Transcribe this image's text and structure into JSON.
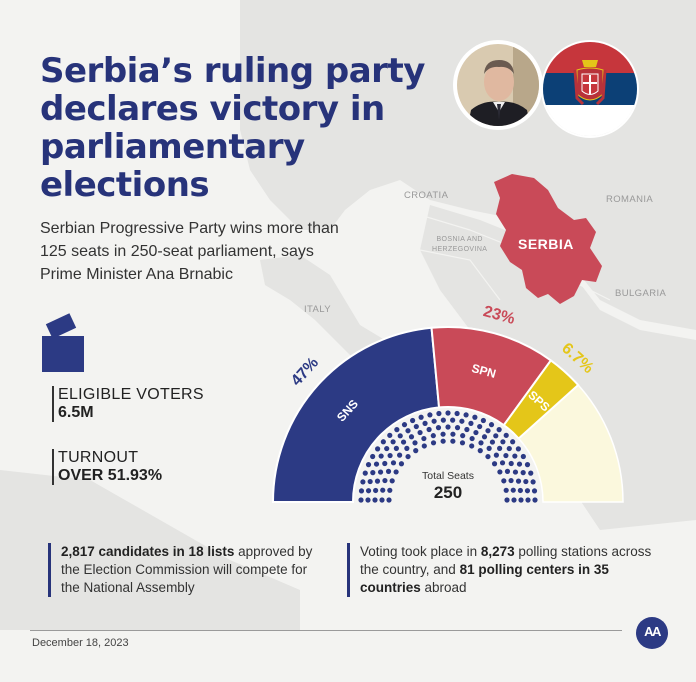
{
  "title": "Serbia’s ruling party declares victory in parliamentary elections",
  "subtitle": "Serbian Progressive Party wins more than 125 seats in 250-seat parliament, says Prime Minister Ana Brnabic",
  "map_labels": {
    "croatia": "CROATIA",
    "bosnia_line1": "BOSNIA AND",
    "bosnia_line2": "HERZEGOVINA",
    "romania": "ROMANIA",
    "bulgaria": "BULGARIA",
    "italy": "ITALY",
    "serbia": "SERBIA"
  },
  "stats": {
    "eligible_label": "ELIGIBLE VOTERS",
    "eligible_value": "6.5M",
    "turnout_label": "TURNOUT",
    "turnout_value": "OVER 51.93%"
  },
  "chart_data": {
    "type": "pie",
    "categories": [
      "SNS",
      "SPN",
      "SPS"
    ],
    "values": [
      47,
      23,
      6.7
    ],
    "value_labels": [
      "47%",
      "23%",
      "6.7%"
    ],
    "colors": [
      "#2c3a84",
      "#c94a58",
      "#e4c619"
    ],
    "remainder_color": "#fbf8dd",
    "total_seats_label": "Total Seats",
    "total_seats_value": "250"
  },
  "notes": {
    "left_bold": "2,817 candidates in 18 lists",
    "left_rest": " approved by the Election Commission will compete for the National Assembly",
    "right_p1": "Voting took place in ",
    "right_b1": "8,273",
    "right_p2": " polling stations across the country, and ",
    "right_b2": "81 polling centers in 35 countries",
    "right_p3": " abroad"
  },
  "footer": {
    "date": "December 18, 2023",
    "logo": "AA"
  },
  "icons": {
    "ballot": "ballot-box-icon",
    "portrait": "portrait-photo",
    "flag": "serbia-flag-icon"
  }
}
